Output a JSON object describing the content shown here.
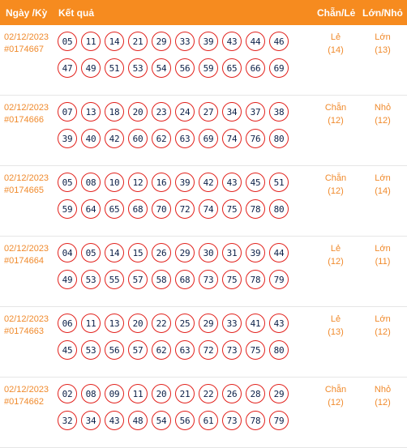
{
  "header": {
    "date_label": "Ngày /Kỳ",
    "result_label": "Kết quả",
    "chan_le_label": "Chẵn/Lẻ",
    "lon_nho_label": "Lớn/Nhỏ"
  },
  "draws": [
    {
      "date": "02/12/2023",
      "code": "#0174667",
      "numbers": [
        [
          "05",
          "11",
          "14",
          "21",
          "29",
          "33",
          "39",
          "43",
          "44",
          "46"
        ],
        [
          "47",
          "49",
          "51",
          "53",
          "54",
          "56",
          "59",
          "65",
          "66",
          "69"
        ]
      ],
      "chan_le": "Lẻ",
      "chan_le_count": "(14)",
      "lon_nho": "Lớn",
      "lon_nho_count": "(13)"
    },
    {
      "date": "02/12/2023",
      "code": "#0174666",
      "numbers": [
        [
          "07",
          "13",
          "18",
          "20",
          "23",
          "24",
          "27",
          "34",
          "37",
          "38"
        ],
        [
          "39",
          "40",
          "42",
          "60",
          "62",
          "63",
          "69",
          "74",
          "76",
          "80"
        ]
      ],
      "chan_le": "Chẵn",
      "chan_le_count": "(12)",
      "lon_nho": "Nhỏ",
      "lon_nho_count": "(12)"
    },
    {
      "date": "02/12/2023",
      "code": "#0174665",
      "numbers": [
        [
          "05",
          "08",
          "10",
          "12",
          "16",
          "39",
          "42",
          "43",
          "45",
          "51"
        ],
        [
          "59",
          "64",
          "65",
          "68",
          "70",
          "72",
          "74",
          "75",
          "78",
          "80"
        ]
      ],
      "chan_le": "Chẵn",
      "chan_le_count": "(12)",
      "lon_nho": "Lớn",
      "lon_nho_count": "(14)"
    },
    {
      "date": "02/12/2023",
      "code": "#0174664",
      "numbers": [
        [
          "04",
          "05",
          "14",
          "15",
          "26",
          "29",
          "30",
          "31",
          "39",
          "44"
        ],
        [
          "49",
          "53",
          "55",
          "57",
          "58",
          "68",
          "73",
          "75",
          "78",
          "79"
        ]
      ],
      "chan_le": "Lẻ",
      "chan_le_count": "(12)",
      "lon_nho": "Lớn",
      "lon_nho_count": "(11)"
    },
    {
      "date": "02/12/2023",
      "code": "#0174663",
      "numbers": [
        [
          "06",
          "11",
          "13",
          "20",
          "22",
          "25",
          "29",
          "33",
          "41",
          "43"
        ],
        [
          "45",
          "53",
          "56",
          "57",
          "62",
          "63",
          "72",
          "73",
          "75",
          "80"
        ]
      ],
      "chan_le": "Lẻ",
      "chan_le_count": "(13)",
      "lon_nho": "Lớn",
      "lon_nho_count": "(12)"
    },
    {
      "date": "02/12/2023",
      "code": "#0174662",
      "numbers": [
        [
          "02",
          "08",
          "09",
          "11",
          "20",
          "21",
          "22",
          "26",
          "28",
          "29"
        ],
        [
          "32",
          "34",
          "43",
          "48",
          "54",
          "56",
          "61",
          "73",
          "78",
          "79"
        ]
      ],
      "chan_le": "Chẵn",
      "chan_le_count": "(12)",
      "lon_nho": "Nhỏ",
      "lon_nho_count": "(12)"
    }
  ],
  "colors": {
    "header_bg": "#f68b1f",
    "accent_text": "#f08a2c",
    "ball_border": "#e2211c",
    "ball_text": "#0b1f47"
  }
}
